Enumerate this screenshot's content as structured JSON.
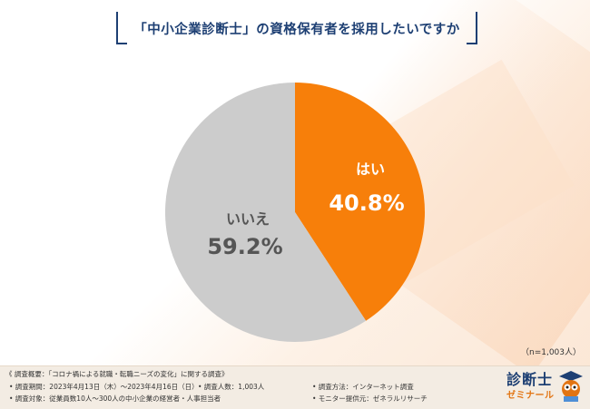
{
  "title": "「中小企業診断士」の資格保有者を採用したいですか",
  "chart_data": {
    "type": "pie",
    "slices": [
      {
        "label": "はい",
        "value": 40.8,
        "display": "40.8%",
        "color": "#f77f0a"
      },
      {
        "label": "いいえ",
        "value": 59.2,
        "display": "59.2%",
        "color": "#cccccc"
      }
    ]
  },
  "sample_note": "（n=1,003人）",
  "footer": {
    "overview": "《 調査概要：「コロナ禍による就職・転職ニーズの変化」に関する調査》",
    "period": "• 調査期間：2023年4月13日（木）〜2023年4月16日（日）",
    "count": "• 調査人数：1,003人",
    "method": "• 調査方法：インターネット調査",
    "target": "• 調査対象：従業員数10人〜300人の中小企業の経営者・人事担当者",
    "provider": "• モニター提供元：ゼネラルリサーチ"
  },
  "logo": {
    "line1": "診断士",
    "line2": "ゼミナール"
  }
}
